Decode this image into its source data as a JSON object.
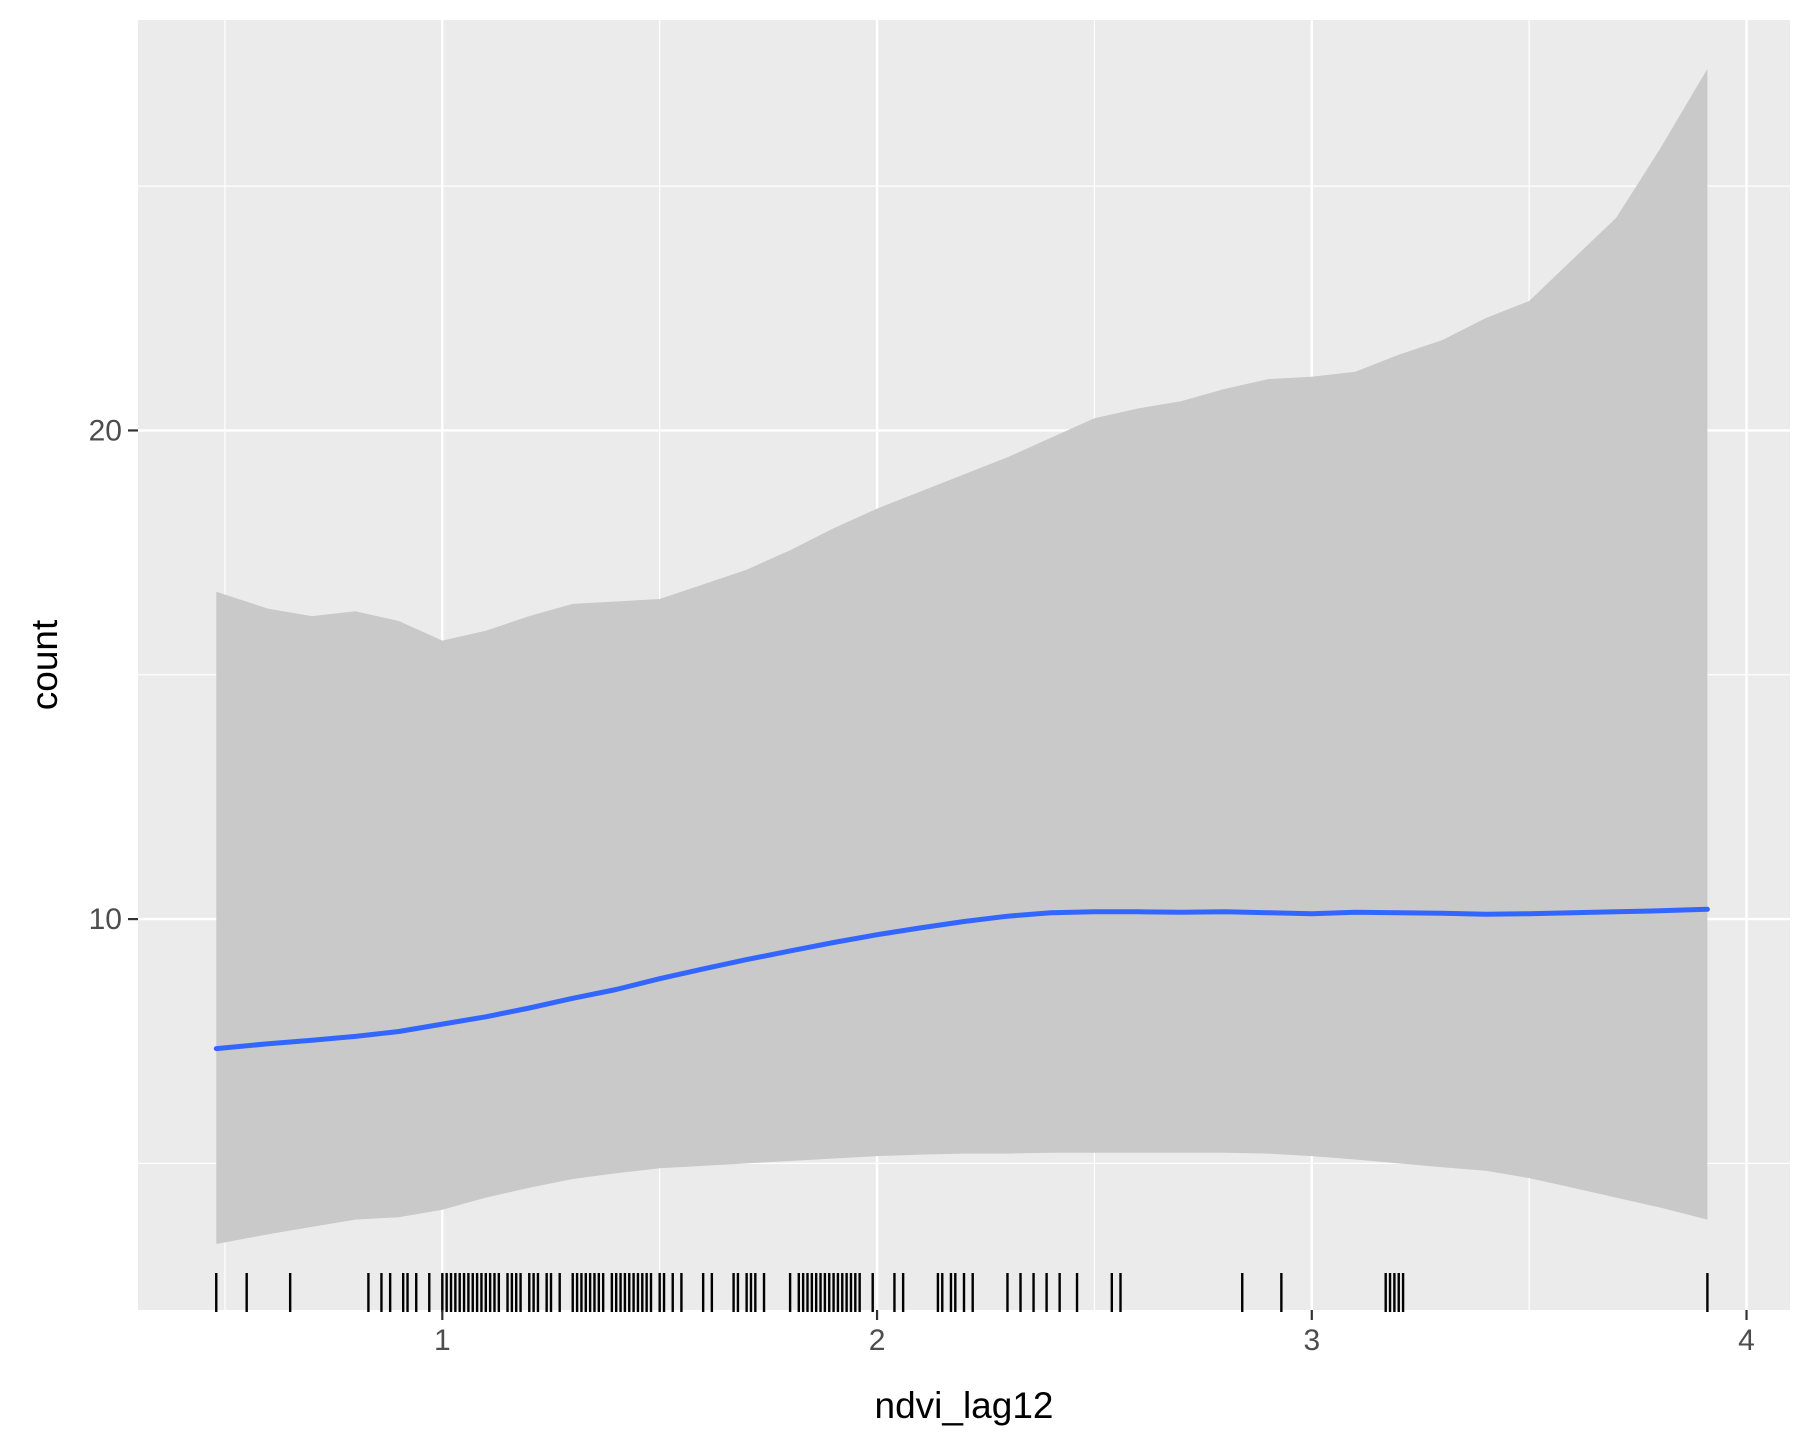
{
  "chart_data": {
    "type": "line",
    "xlabel": "ndvi_lag12",
    "ylabel": "count",
    "xlim": [
      0.3,
      4.1
    ],
    "ylim": [
      2.0,
      28.4
    ],
    "x_ticks": [
      1,
      2,
      3,
      4
    ],
    "y_ticks": [
      10,
      20
    ],
    "grid": true,
    "legend": "none",
    "colors": {
      "panel": "#ebebeb",
      "grid": "#ffffff",
      "ribbon": "#c9c9c9",
      "line": "#3366ff",
      "rug": "#000000",
      "tick_text": "#4d4d4d"
    },
    "series": [
      {
        "x": [
          0.48,
          0.6,
          0.7,
          0.8,
          0.9,
          1.0,
          1.1,
          1.2,
          1.3,
          1.4,
          1.5,
          1.6,
          1.7,
          1.8,
          1.9,
          2.0,
          2.1,
          2.2,
          2.3,
          2.4,
          2.5,
          2.6,
          2.7,
          2.8,
          2.9,
          3.0,
          3.1,
          3.2,
          3.3,
          3.4,
          3.5,
          3.6,
          3.7,
          3.8,
          3.91
        ],
        "y": [
          7.35,
          7.45,
          7.52,
          7.6,
          7.7,
          7.85,
          8.0,
          8.18,
          8.38,
          8.56,
          8.78,
          8.98,
          9.17,
          9.35,
          9.52,
          9.68,
          9.82,
          9.95,
          10.06,
          10.13,
          10.15,
          10.15,
          10.14,
          10.15,
          10.13,
          10.11,
          10.14,
          10.13,
          10.12,
          10.1,
          10.11,
          10.13,
          10.15,
          10.17,
          10.2
        ],
        "ymin": [
          3.35,
          3.55,
          3.7,
          3.85,
          3.9,
          4.05,
          4.3,
          4.5,
          4.68,
          4.8,
          4.9,
          4.95,
          5.0,
          5.05,
          5.1,
          5.15,
          5.18,
          5.2,
          5.2,
          5.22,
          5.22,
          5.22,
          5.22,
          5.22,
          5.2,
          5.15,
          5.08,
          5.0,
          4.92,
          4.85,
          4.7,
          4.5,
          4.3,
          4.1,
          3.85
        ],
        "ymax": [
          16.7,
          16.35,
          16.2,
          16.3,
          16.1,
          15.7,
          15.9,
          16.2,
          16.45,
          16.5,
          16.55,
          16.85,
          17.15,
          17.55,
          18.0,
          18.4,
          18.75,
          19.1,
          19.45,
          19.85,
          20.25,
          20.45,
          20.6,
          20.85,
          21.05,
          21.1,
          21.2,
          21.55,
          21.85,
          22.3,
          22.65,
          23.5,
          24.35,
          25.75,
          27.4
        ]
      }
    ],
    "rug_x": [
      0.48,
      0.55,
      0.65,
      0.83,
      0.86,
      0.88,
      0.91,
      0.92,
      0.94,
      0.97,
      1.0,
      1.01,
      1.02,
      1.03,
      1.04,
      1.05,
      1.06,
      1.07,
      1.08,
      1.09,
      1.1,
      1.11,
      1.12,
      1.13,
      1.15,
      1.16,
      1.17,
      1.18,
      1.2,
      1.21,
      1.22,
      1.24,
      1.25,
      1.27,
      1.3,
      1.31,
      1.32,
      1.33,
      1.34,
      1.35,
      1.36,
      1.37,
      1.39,
      1.4,
      1.41,
      1.42,
      1.43,
      1.44,
      1.45,
      1.46,
      1.47,
      1.48,
      1.5,
      1.51,
      1.53,
      1.55,
      1.6,
      1.62,
      1.67,
      1.68,
      1.7,
      1.71,
      1.72,
      1.74,
      1.8,
      1.82,
      1.83,
      1.84,
      1.85,
      1.86,
      1.87,
      1.88,
      1.89,
      1.9,
      1.91,
      1.92,
      1.93,
      1.94,
      1.95,
      1.96,
      1.99,
      2.04,
      2.06,
      2.14,
      2.15,
      2.17,
      2.18,
      2.2,
      2.22,
      2.3,
      2.33,
      2.36,
      2.39,
      2.42,
      2.46,
      2.54,
      2.56,
      2.84,
      2.93,
      3.17,
      3.18,
      3.19,
      3.2,
      3.21,
      3.91
    ]
  }
}
